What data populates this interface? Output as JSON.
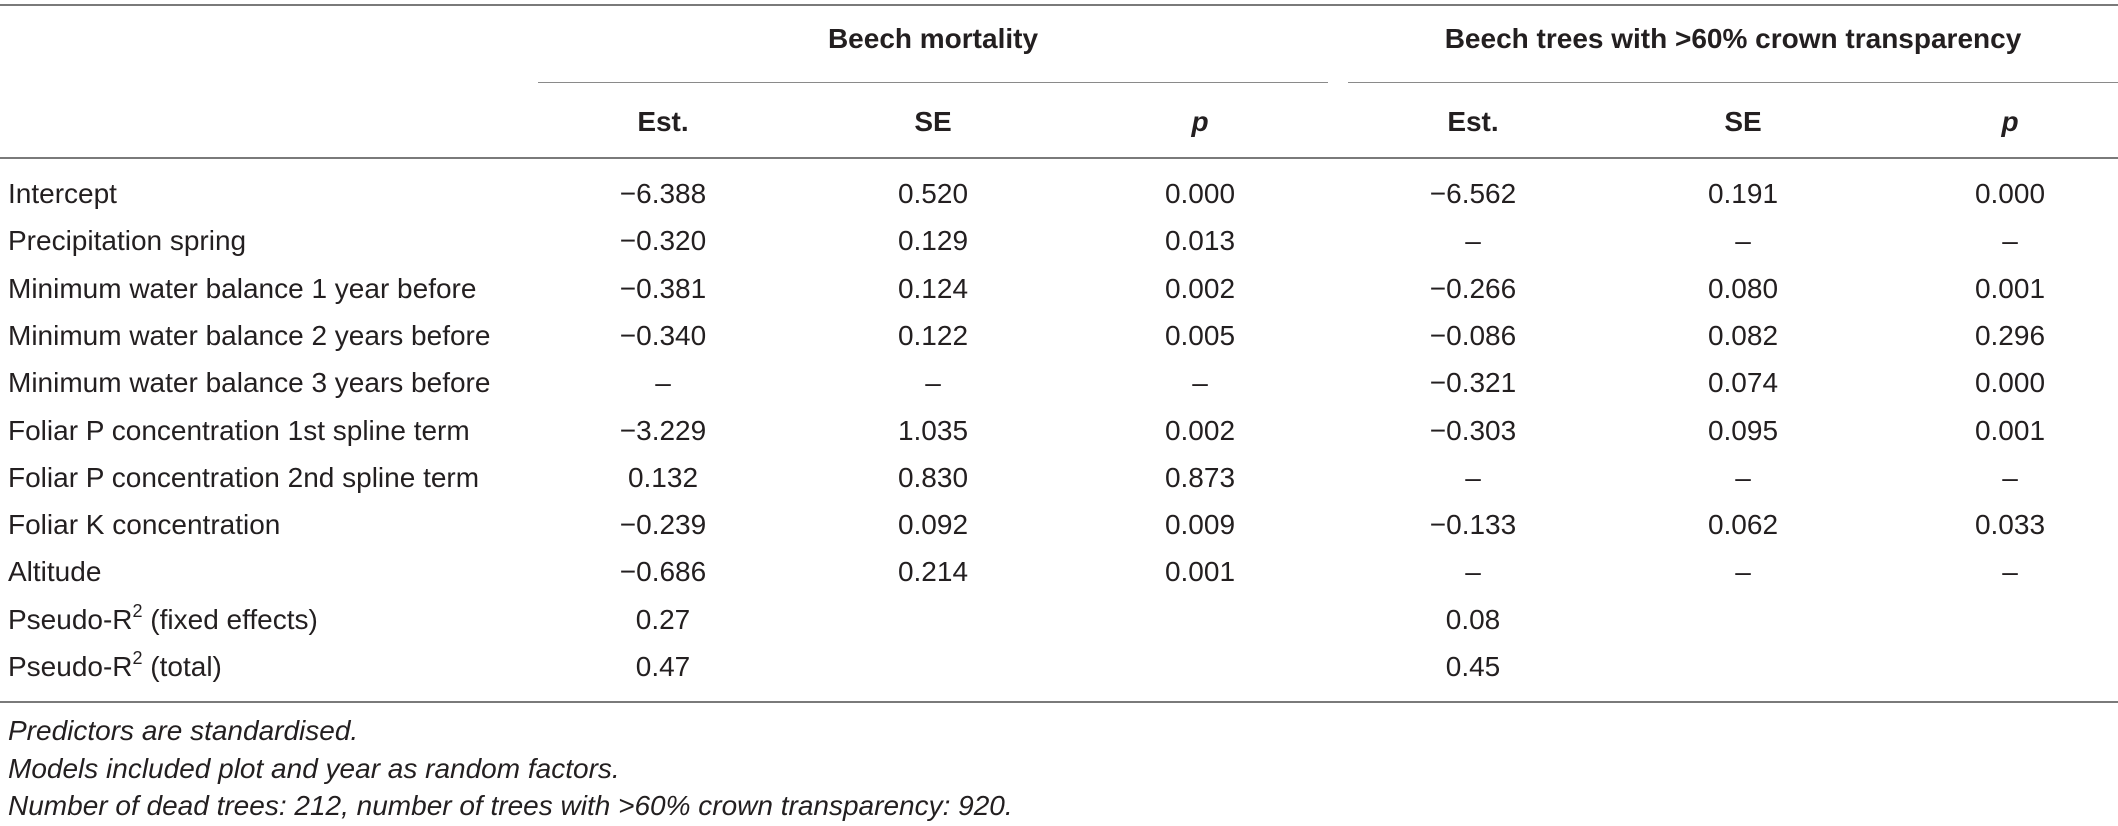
{
  "groups": {
    "mortality": "Beech mortality",
    "transparency": "Beech trees with >60% crown transparency"
  },
  "columns": {
    "est": "Est.",
    "se": "SE",
    "p": "p"
  },
  "rows": [
    {
      "label": "Intercept",
      "label_sup": "",
      "label_suffix": "",
      "m_est": "−6.388",
      "m_se": "0.520",
      "m_p": "0.000",
      "t_est": "−6.562",
      "t_se": "0.191",
      "t_p": "0.000"
    },
    {
      "label": "Precipitation spring",
      "label_sup": "",
      "label_suffix": "",
      "m_est": "−0.320",
      "m_se": "0.129",
      "m_p": "0.013",
      "t_est": "–",
      "t_se": "–",
      "t_p": "–"
    },
    {
      "label": "Minimum water balance 1 year before",
      "label_sup": "",
      "label_suffix": "",
      "m_est": "−0.381",
      "m_se": "0.124",
      "m_p": "0.002",
      "t_est": "−0.266",
      "t_se": "0.080",
      "t_p": "0.001"
    },
    {
      "label": "Minimum water balance 2 years before",
      "label_sup": "",
      "label_suffix": "",
      "m_est": "−0.340",
      "m_se": "0.122",
      "m_p": "0.005",
      "t_est": "−0.086",
      "t_se": "0.082",
      "t_p": "0.296"
    },
    {
      "label": "Minimum water balance 3 years before",
      "label_sup": "",
      "label_suffix": "",
      "m_est": "–",
      "m_se": "–",
      "m_p": "–",
      "t_est": "−0.321",
      "t_se": "0.074",
      "t_p": "0.000"
    },
    {
      "label": "Foliar P concentration 1st spline term",
      "label_sup": "",
      "label_suffix": "",
      "m_est": "−3.229",
      "m_se": "1.035",
      "m_p": "0.002",
      "t_est": "−0.303",
      "t_se": "0.095",
      "t_p": "0.001"
    },
    {
      "label": "Foliar P concentration 2nd spline term",
      "label_sup": "",
      "label_suffix": "",
      "m_est": "0.132",
      "m_se": "0.830",
      "m_p": "0.873",
      "t_est": "–",
      "t_se": "–",
      "t_p": "–"
    },
    {
      "label": "Foliar K concentration",
      "label_sup": "",
      "label_suffix": "",
      "m_est": "−0.239",
      "m_se": "0.092",
      "m_p": "0.009",
      "t_est": "−0.133",
      "t_se": "0.062",
      "t_p": "0.033"
    },
    {
      "label": "Altitude",
      "label_sup": "",
      "label_suffix": "",
      "m_est": "−0.686",
      "m_se": "0.214",
      "m_p": "0.001",
      "t_est": "–",
      "t_se": "–",
      "t_p": "–"
    },
    {
      "label": "Pseudo-R",
      "label_sup": "2",
      "label_suffix": " (fixed effects)",
      "m_est": "0.27",
      "m_se": "",
      "m_p": "",
      "t_est": "0.08",
      "t_se": "",
      "t_p": ""
    },
    {
      "label": "Pseudo-R",
      "label_sup": "2",
      "label_suffix": " (total)",
      "m_est": "0.47",
      "m_se": "",
      "m_p": "",
      "t_est": "0.45",
      "t_se": "",
      "t_p": ""
    }
  ],
  "notes": [
    "Predictors are standardised.",
    "Models included plot and year as random factors.",
    "Number of dead trees: 212, number of trees with >60% crown transparency: 920."
  ]
}
